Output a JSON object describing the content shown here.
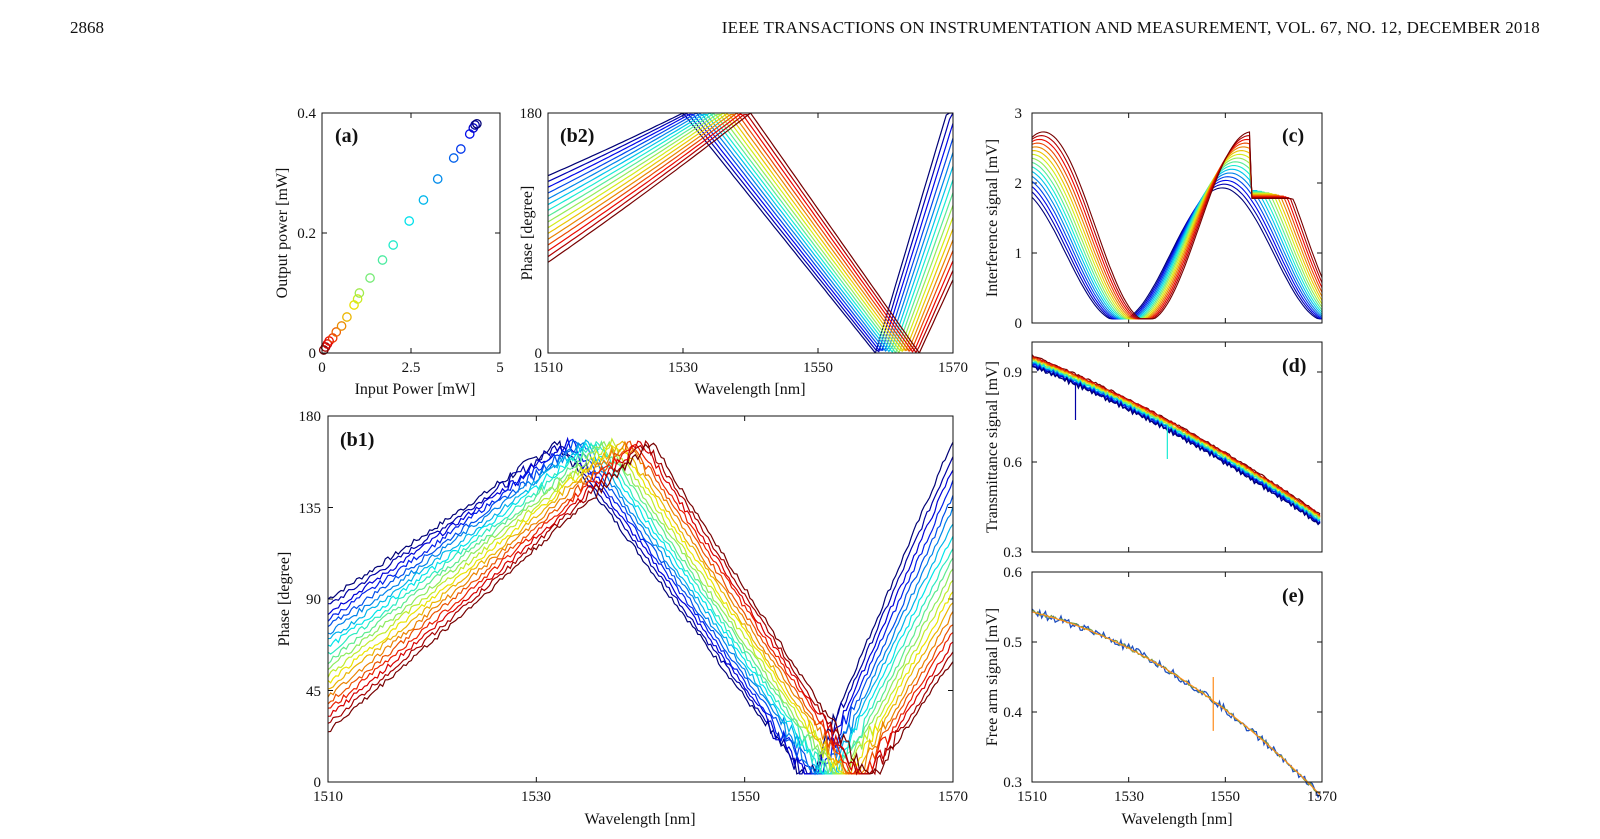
{
  "header": {
    "page_number": "2868",
    "journal": "IEEE TRANSACTIONS ON INSTRUMENTATION AND MEASUREMENT, VOL. 67, NO. 12, DECEMBER 2018"
  },
  "colors": {
    "colormap": [
      "#00008f",
      "#0000ff",
      "#0080ff",
      "#00ffff",
      "#80ff80",
      "#ffff00",
      "#ff8000",
      "#ff0000",
      "#c00000"
    ],
    "axis": "#111111"
  },
  "chart_data": [
    {
      "id": "a",
      "label": "(a)",
      "type": "scatter",
      "xlabel": "Input Power [mW]",
      "ylabel": "Output power [mW]",
      "xlim": [
        0,
        5
      ],
      "ylim": [
        0,
        0.4
      ],
      "xticks": [
        "0",
        "2.5",
        "5"
      ],
      "yticks": [
        "0",
        "0.2",
        "0.4"
      ],
      "points": [
        [
          0.05,
          0.005
        ],
        [
          0.1,
          0.01
        ],
        [
          0.15,
          0.015
        ],
        [
          0.2,
          0.02
        ],
        [
          0.3,
          0.025
        ],
        [
          0.4,
          0.035
        ],
        [
          0.55,
          0.045
        ],
        [
          0.7,
          0.06
        ],
        [
          0.9,
          0.08
        ],
        [
          1.0,
          0.09
        ],
        [
          1.05,
          0.1
        ],
        [
          1.35,
          0.125
        ],
        [
          1.7,
          0.155
        ],
        [
          2.0,
          0.18
        ],
        [
          2.45,
          0.22
        ],
        [
          2.85,
          0.255
        ],
        [
          3.25,
          0.29
        ],
        [
          3.7,
          0.325
        ],
        [
          3.9,
          0.34
        ],
        [
          4.15,
          0.365
        ],
        [
          4.25,
          0.375
        ],
        [
          4.3,
          0.38
        ],
        [
          4.35,
          0.382
        ]
      ]
    },
    {
      "id": "b2",
      "label": "(b2)",
      "type": "line",
      "xlabel": "Wavelength [nm]",
      "ylabel": "Phase [degree]",
      "xlim": [
        1510,
        1570
      ],
      "ylim": [
        0,
        180
      ],
      "xticks": [
        "1510",
        "1530",
        "1550",
        "1570"
      ],
      "yticks": [
        "0",
        "180"
      ],
      "series_count": 16,
      "series_description_curves": {
        "peak_x_start": 1530,
        "peak_x_end": 1540,
        "min_x_start": 1558.5,
        "min_x_end": 1565,
        "left_y_start": 133,
        "left_y_end": 68
      }
    },
    {
      "id": "b1",
      "label": "(b1)",
      "type": "line",
      "xlabel": "Wavelength [nm]",
      "ylabel": "Phase [degree]",
      "xlim": [
        1510,
        1570
      ],
      "ylim": [
        0,
        180
      ],
      "xticks": [
        "1510",
        "1530",
        "1550",
        "1570"
      ],
      "yticks": [
        "0",
        "45",
        "90",
        "135",
        "180"
      ],
      "series_count": 20,
      "series_description_curves": {
        "peak_x_start": 1532,
        "peak_x_end": 1541,
        "peak_y": 167,
        "min_x_start": 1556,
        "min_x_end": 1562,
        "left_y_start": 90,
        "left_y_end": 25
      }
    },
    {
      "id": "c",
      "label": "(c)",
      "type": "line",
      "xlabel": "",
      "ylabel": "Interference signal [mV]",
      "xlim": [
        1510,
        1570
      ],
      "ylim": [
        0,
        3
      ],
      "xticks": [],
      "yticks": [
        "0",
        "1",
        "2",
        "3"
      ],
      "series_count": 16
    },
    {
      "id": "d",
      "label": "(d)",
      "type": "line",
      "xlabel": "",
      "ylabel": "Transmittance signal [mV]",
      "xlim": [
        1510,
        1570
      ],
      "ylim": [
        0.3,
        1.0
      ],
      "xticks": [],
      "yticks": [
        "0.3",
        "0.6",
        "0.9"
      ],
      "series_count": 14
    },
    {
      "id": "e",
      "label": "(e)",
      "type": "line",
      "xlabel": "Wavelength [nm]",
      "ylabel": "Free arm signal [mV]",
      "xlim": [
        1510,
        1570
      ],
      "ylim": [
        0.3,
        0.6
      ],
      "xticks": [
        "1510",
        "1530",
        "1550",
        "1570"
      ],
      "yticks": [
        "0.3",
        "0.4",
        "0.5",
        "0.6"
      ],
      "series_count": 3
    }
  ]
}
